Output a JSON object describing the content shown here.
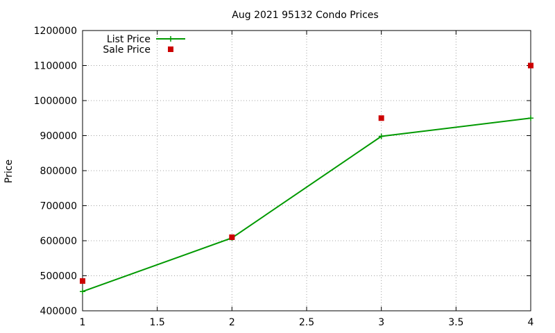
{
  "chart_data": {
    "type": "line",
    "title": "Aug 2021 95132 Condo Prices",
    "xlabel": "",
    "ylabel": "Price",
    "xlim": [
      1,
      4
    ],
    "ylim": [
      400000,
      1200000
    ],
    "xticks": [
      "1",
      "1.5",
      "2",
      "2.5",
      "3",
      "3.5",
      "4"
    ],
    "yticks": [
      "400000",
      "500000",
      "600000",
      "700000",
      "800000",
      "900000",
      "1000000",
      "1100000",
      "1200000"
    ],
    "grid": true,
    "legend_position": "top-left",
    "series": [
      {
        "name": "List Price",
        "style": "line-with-plus-markers",
        "color": "#009900",
        "points": [
          [
            1,
            455000
          ],
          [
            2,
            608000
          ],
          [
            3,
            898000
          ],
          [
            4,
            950000
          ]
        ]
      },
      {
        "name": "Sale Price",
        "style": "square-markers",
        "color": "#cc0000",
        "points": [
          [
            1,
            485000
          ],
          [
            2,
            610000
          ],
          [
            3,
            950000
          ],
          [
            4,
            1100000
          ]
        ]
      }
    ]
  }
}
